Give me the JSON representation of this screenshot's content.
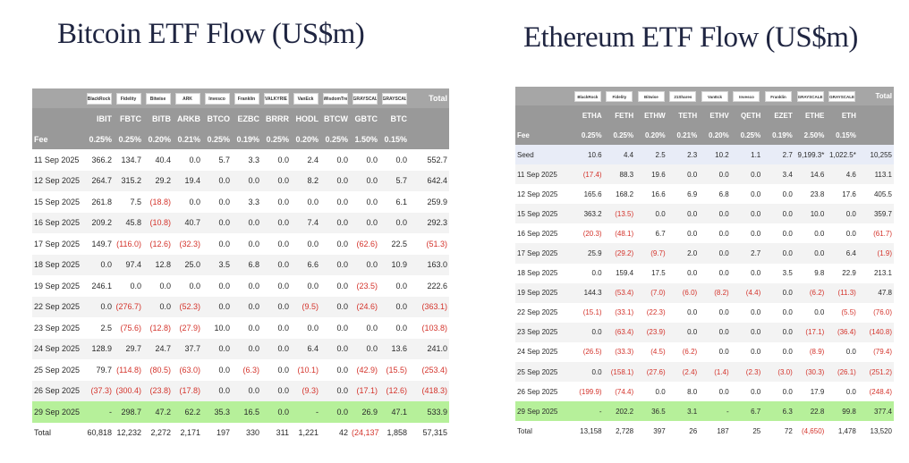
{
  "btc": {
    "title": "Bitcoin ETF Flow (US$m)",
    "logos": [
      "BlackRock",
      "Fidelity",
      "Bitwise",
      "ARK",
      "Invesco",
      "Franklin",
      "VALKYRIE",
      "VanEck",
      "WisdomTree",
      "GRAYSCALE",
      "GRAYSCALE"
    ],
    "total_header": "Total",
    "tickers": [
      "IBIT",
      "FBTC",
      "BITB",
      "ARKB",
      "BTCO",
      "EZBC",
      "BRRR",
      "HODL",
      "BTCW",
      "GBTC",
      "BTC"
    ],
    "fee_label": "Fee",
    "fees": [
      "0.25%",
      "0.25%",
      "0.20%",
      "0.21%",
      "0.25%",
      "0.19%",
      "0.25%",
      "0.20%",
      "0.25%",
      "1.50%",
      "0.15%"
    ],
    "rows": [
      {
        "date": "11 Sep 2025",
        "cells": [
          "366.2",
          "134.7",
          "40.4",
          "0.0",
          "5.7",
          "3.3",
          "0.0",
          "2.4",
          "0.0",
          "0.0",
          "0.0"
        ],
        "total": "552.7"
      },
      {
        "date": "12 Sep 2025",
        "cells": [
          "264.7",
          "315.2",
          "29.2",
          "19.4",
          "0.0",
          "0.0",
          "0.0",
          "8.2",
          "0.0",
          "0.0",
          "5.7"
        ],
        "total": "642.4"
      },
      {
        "date": "15 Sep 2025",
        "cells": [
          "261.8",
          "7.5",
          "(18.8)",
          "0.0",
          "0.0",
          "3.3",
          "0.0",
          "0.0",
          "0.0",
          "0.0",
          "6.1"
        ],
        "total": "259.9"
      },
      {
        "date": "16 Sep 2025",
        "cells": [
          "209.2",
          "45.8",
          "(10.8)",
          "40.7",
          "0.0",
          "0.0",
          "0.0",
          "7.4",
          "0.0",
          "0.0",
          "0.0"
        ],
        "total": "292.3"
      },
      {
        "date": "17 Sep 2025",
        "cells": [
          "149.7",
          "(116.0)",
          "(12.6)",
          "(32.3)",
          "0.0",
          "0.0",
          "0.0",
          "0.0",
          "0.0",
          "(62.6)",
          "22.5"
        ],
        "total": "(51.3)"
      },
      {
        "date": "18 Sep 2025",
        "cells": [
          "0.0",
          "97.4",
          "12.8",
          "25.0",
          "3.5",
          "6.8",
          "0.0",
          "6.6",
          "0.0",
          "0.0",
          "10.9"
        ],
        "total": "163.0"
      },
      {
        "date": "19 Sep 2025",
        "cells": [
          "246.1",
          "0.0",
          "0.0",
          "0.0",
          "0.0",
          "0.0",
          "0.0",
          "0.0",
          "0.0",
          "(23.5)",
          "0.0"
        ],
        "total": "222.6"
      },
      {
        "date": "22 Sep 2025",
        "cells": [
          "0.0",
          "(276.7)",
          "0.0",
          "(52.3)",
          "0.0",
          "0.0",
          "0.0",
          "(9.5)",
          "0.0",
          "(24.6)",
          "0.0"
        ],
        "total": "(363.1)"
      },
      {
        "date": "23 Sep 2025",
        "cells": [
          "2.5",
          "(75.6)",
          "(12.8)",
          "(27.9)",
          "10.0",
          "0.0",
          "0.0",
          "0.0",
          "0.0",
          "0.0",
          "0.0"
        ],
        "total": "(103.8)"
      },
      {
        "date": "24 Sep 2025",
        "cells": [
          "128.9",
          "29.7",
          "24.7",
          "37.7",
          "0.0",
          "0.0",
          "0.0",
          "6.4",
          "0.0",
          "0.0",
          "13.6"
        ],
        "total": "241.0"
      },
      {
        "date": "25 Sep 2025",
        "cells": [
          "79.7",
          "(114.8)",
          "(80.5)",
          "(63.0)",
          "0.0",
          "(6.3)",
          "0.0",
          "(10.1)",
          "0.0",
          "(42.9)",
          "(15.5)"
        ],
        "total": "(253.4)"
      },
      {
        "date": "26 Sep 2025",
        "cells": [
          "(37.3)",
          "(300.4)",
          "(23.8)",
          "(17.8)",
          "0.0",
          "0.0",
          "0.0",
          "(9.3)",
          "0.0",
          "(17.1)",
          "(12.6)"
        ],
        "total": "(418.3)"
      },
      {
        "date": "29 Sep 2025",
        "cells": [
          "-",
          "298.7",
          "47.2",
          "62.2",
          "35.3",
          "16.5",
          "0.0",
          "-",
          "0.0",
          "26.9",
          "47.1"
        ],
        "total": "533.9",
        "highlight": true
      }
    ],
    "total_row": {
      "label": "Total",
      "cells": [
        "60,818",
        "12,232",
        "2,272",
        "2,171",
        "197",
        "330",
        "311",
        "1,221",
        "42",
        "(24,137)",
        "1,858"
      ],
      "total": "57,315"
    }
  },
  "eth": {
    "title": "Ethereum ETF Flow (US$m)",
    "logos": [
      "BlackRock",
      "Fidelity",
      "Bitwise",
      "21Shares",
      "VanEck",
      "Invesco",
      "Franklin",
      "GRAYSCALE",
      "GRAYSCALE"
    ],
    "total_header": "Total",
    "tickers": [
      "ETHA",
      "FETH",
      "ETHW",
      "TETH",
      "ETHV",
      "QETH",
      "EZET",
      "ETHE",
      "ETH"
    ],
    "fee_label": "Fee",
    "fees": [
      "0.25%",
      "0.25%",
      "0.20%",
      "0.21%",
      "0.20%",
      "0.25%",
      "0.19%",
      "2.50%",
      "0.15%"
    ],
    "rows": [
      {
        "date": "Seed",
        "cells": [
          "10.6",
          "4.4",
          "2.5",
          "2.3",
          "10.2",
          "1.1",
          "2.7",
          "9,199.3*",
          "1,022.5*"
        ],
        "total": "10,255",
        "seed": true
      },
      {
        "date": "11 Sep 2025",
        "cells": [
          "(17.4)",
          "88.3",
          "19.6",
          "0.0",
          "0.0",
          "0.0",
          "3.4",
          "14.6",
          "4.6"
        ],
        "total": "113.1"
      },
      {
        "date": "12 Sep 2025",
        "cells": [
          "165.6",
          "168.2",
          "16.6",
          "6.9",
          "6.8",
          "0.0",
          "0.0",
          "23.8",
          "17.6"
        ],
        "total": "405.5"
      },
      {
        "date": "15 Sep 2025",
        "cells": [
          "363.2",
          "(13.5)",
          "0.0",
          "0.0",
          "0.0",
          "0.0",
          "0.0",
          "10.0",
          "0.0"
        ],
        "total": "359.7"
      },
      {
        "date": "16 Sep 2025",
        "cells": [
          "(20.3)",
          "(48.1)",
          "6.7",
          "0.0",
          "0.0",
          "0.0",
          "0.0",
          "0.0",
          "0.0"
        ],
        "total": "(61.7)"
      },
      {
        "date": "17 Sep 2025",
        "cells": [
          "25.9",
          "(29.2)",
          "(9.7)",
          "2.0",
          "0.0",
          "2.7",
          "0.0",
          "0.0",
          "6.4"
        ],
        "total": "(1.9)"
      },
      {
        "date": "18 Sep 2025",
        "cells": [
          "0.0",
          "159.4",
          "17.5",
          "0.0",
          "0.0",
          "0.0",
          "3.5",
          "9.8",
          "22.9"
        ],
        "total": "213.1"
      },
      {
        "date": "19 Sep 2025",
        "cells": [
          "144.3",
          "(53.4)",
          "(7.0)",
          "(6.0)",
          "(8.2)",
          "(4.4)",
          "0.0",
          "(6.2)",
          "(11.3)"
        ],
        "total": "47.8"
      },
      {
        "date": "22 Sep 2025",
        "cells": [
          "(15.1)",
          "(33.1)",
          "(22.3)",
          "0.0",
          "0.0",
          "0.0",
          "0.0",
          "0.0",
          "(5.5)"
        ],
        "total": "(76.0)"
      },
      {
        "date": "23 Sep 2025",
        "cells": [
          "0.0",
          "(63.4)",
          "(23.9)",
          "0.0",
          "0.0",
          "0.0",
          "0.0",
          "(17.1)",
          "(36.4)"
        ],
        "total": "(140.8)"
      },
      {
        "date": "24 Sep 2025",
        "cells": [
          "(26.5)",
          "(33.3)",
          "(4.5)",
          "(6.2)",
          "0.0",
          "0.0",
          "0.0",
          "(8.9)",
          "0.0"
        ],
        "total": "(79.4)"
      },
      {
        "date": "25 Sep 2025",
        "cells": [
          "0.0",
          "(158.1)",
          "(27.6)",
          "(2.4)",
          "(1.4)",
          "(2.3)",
          "(3.0)",
          "(30.3)",
          "(26.1)"
        ],
        "total": "(251.2)"
      },
      {
        "date": "26 Sep 2025",
        "cells": [
          "(199.9)",
          "(74.4)",
          "0.0",
          "8.0",
          "0.0",
          "0.0",
          "0.0",
          "17.9",
          "0.0"
        ],
        "total": "(248.4)"
      },
      {
        "date": "29 Sep 2025",
        "cells": [
          "-",
          "202.2",
          "36.5",
          "3.1",
          "-",
          "6.7",
          "6.3",
          "22.8",
          "99.8"
        ],
        "total": "377.4",
        "highlight": true
      }
    ],
    "total_row": {
      "label": "Total",
      "cells": [
        "13,158",
        "2,728",
        "397",
        "26",
        "187",
        "25",
        "72",
        "(4,650)",
        "1,478"
      ],
      "total": "13,520"
    }
  },
  "colors": {
    "negative": "#d4342c",
    "highlight": "#b6f09a",
    "header": "#999999",
    "title": "#1f2541",
    "seed": "#e8ecf7"
  },
  "chart_data": [
    {
      "type": "table",
      "title": "Bitcoin ETF Flow (US$m)",
      "columns": [
        "IBIT",
        "FBTC",
        "BITB",
        "ARKB",
        "BTCO",
        "EZBC",
        "BRRR",
        "HODL",
        "BTCW",
        "GBTC",
        "BTC",
        "Total"
      ],
      "fees": [
        "0.25%",
        "0.25%",
        "0.20%",
        "0.21%",
        "0.25%",
        "0.19%",
        "0.25%",
        "0.20%",
        "0.25%",
        "1.50%",
        "0.15%"
      ],
      "rows": [
        [
          "11 Sep 2025",
          366.2,
          134.7,
          40.4,
          0.0,
          5.7,
          3.3,
          0.0,
          2.4,
          0.0,
          0.0,
          0.0,
          552.7
        ],
        [
          "12 Sep 2025",
          264.7,
          315.2,
          29.2,
          19.4,
          0.0,
          0.0,
          0.0,
          8.2,
          0.0,
          0.0,
          5.7,
          642.4
        ],
        [
          "15 Sep 2025",
          261.8,
          7.5,
          -18.8,
          0.0,
          0.0,
          3.3,
          0.0,
          0.0,
          0.0,
          0.0,
          6.1,
          259.9
        ],
        [
          "16 Sep 2025",
          209.2,
          45.8,
          -10.8,
          40.7,
          0.0,
          0.0,
          0.0,
          7.4,
          0.0,
          0.0,
          0.0,
          292.3
        ],
        [
          "17 Sep 2025",
          149.7,
          -116.0,
          -12.6,
          -32.3,
          0.0,
          0.0,
          0.0,
          0.0,
          0.0,
          -62.6,
          22.5,
          -51.3
        ],
        [
          "18 Sep 2025",
          0.0,
          97.4,
          12.8,
          25.0,
          3.5,
          6.8,
          0.0,
          6.6,
          0.0,
          0.0,
          10.9,
          163.0
        ],
        [
          "19 Sep 2025",
          246.1,
          0.0,
          0.0,
          0.0,
          0.0,
          0.0,
          0.0,
          0.0,
          0.0,
          -23.5,
          0.0,
          222.6
        ],
        [
          "22 Sep 2025",
          0.0,
          -276.7,
          0.0,
          -52.3,
          0.0,
          0.0,
          0.0,
          -9.5,
          0.0,
          -24.6,
          0.0,
          -363.1
        ],
        [
          "23 Sep 2025",
          2.5,
          -75.6,
          -12.8,
          -27.9,
          10.0,
          0.0,
          0.0,
          0.0,
          0.0,
          0.0,
          0.0,
          -103.8
        ],
        [
          "24 Sep 2025",
          128.9,
          29.7,
          24.7,
          37.7,
          0.0,
          0.0,
          0.0,
          6.4,
          0.0,
          0.0,
          13.6,
          241.0
        ],
        [
          "25 Sep 2025",
          79.7,
          -114.8,
          -80.5,
          -63.0,
          0.0,
          -6.3,
          0.0,
          -10.1,
          0.0,
          -42.9,
          -15.5,
          -253.4
        ],
        [
          "26 Sep 2025",
          -37.3,
          -300.4,
          -23.8,
          -17.8,
          0.0,
          0.0,
          0.0,
          -9.3,
          0.0,
          -17.1,
          -12.6,
          -418.3
        ],
        [
          "29 Sep 2025",
          null,
          298.7,
          47.2,
          62.2,
          35.3,
          16.5,
          0.0,
          null,
          0.0,
          26.9,
          47.1,
          533.9
        ],
        [
          "Total",
          60818,
          12232,
          2272,
          2171,
          197,
          330,
          311,
          1221,
          42,
          -24137,
          1858,
          57315
        ]
      ]
    },
    {
      "type": "table",
      "title": "Ethereum ETF Flow (US$m)",
      "columns": [
        "ETHA",
        "FETH",
        "ETHW",
        "TETH",
        "ETHV",
        "QETH",
        "EZET",
        "ETHE",
        "ETH",
        "Total"
      ],
      "fees": [
        "0.25%",
        "0.25%",
        "0.20%",
        "0.21%",
        "0.20%",
        "0.25%",
        "0.19%",
        "2.50%",
        "0.15%"
      ],
      "rows": [
        [
          "Seed",
          10.6,
          4.4,
          2.5,
          2.3,
          10.2,
          1.1,
          2.7,
          9199.3,
          1022.5,
          10255
        ],
        [
          "11 Sep 2025",
          -17.4,
          88.3,
          19.6,
          0.0,
          0.0,
          0.0,
          3.4,
          14.6,
          4.6,
          113.1
        ],
        [
          "12 Sep 2025",
          165.6,
          168.2,
          16.6,
          6.9,
          6.8,
          0.0,
          0.0,
          23.8,
          17.6,
          405.5
        ],
        [
          "15 Sep 2025",
          363.2,
          -13.5,
          0.0,
          0.0,
          0.0,
          0.0,
          0.0,
          10.0,
          0.0,
          359.7
        ],
        [
          "16 Sep 2025",
          -20.3,
          -48.1,
          6.7,
          0.0,
          0.0,
          0.0,
          0.0,
          0.0,
          0.0,
          -61.7
        ],
        [
          "17 Sep 2025",
          25.9,
          -29.2,
          -9.7,
          2.0,
          0.0,
          2.7,
          0.0,
          0.0,
          6.4,
          -1.9
        ],
        [
          "18 Sep 2025",
          0.0,
          159.4,
          17.5,
          0.0,
          0.0,
          0.0,
          3.5,
          9.8,
          22.9,
          213.1
        ],
        [
          "19 Sep 2025",
          144.3,
          -53.4,
          -7.0,
          -6.0,
          -8.2,
          -4.4,
          0.0,
          -6.2,
          -11.3,
          47.8
        ],
        [
          "22 Sep 2025",
          -15.1,
          -33.1,
          -22.3,
          0.0,
          0.0,
          0.0,
          0.0,
          0.0,
          -5.5,
          -76.0
        ],
        [
          "23 Sep 2025",
          0.0,
          -63.4,
          -23.9,
          0.0,
          0.0,
          0.0,
          0.0,
          -17.1,
          -36.4,
          -140.8
        ],
        [
          "24 Sep 2025",
          -26.5,
          -33.3,
          -4.5,
          -6.2,
          0.0,
          0.0,
          0.0,
          -8.9,
          0.0,
          -79.4
        ],
        [
          "25 Sep 2025",
          0.0,
          -158.1,
          -27.6,
          -2.4,
          -1.4,
          -2.3,
          -3.0,
          -30.3,
          -26.1,
          -251.2
        ],
        [
          "26 Sep 2025",
          -199.9,
          -74.4,
          0.0,
          8.0,
          0.0,
          0.0,
          0.0,
          17.9,
          0.0,
          -248.4
        ],
        [
          "29 Sep 2025",
          null,
          202.2,
          36.5,
          3.1,
          null,
          6.7,
          6.3,
          22.8,
          99.8,
          377.4
        ],
        [
          "Total",
          13158,
          2728,
          397,
          26,
          187,
          25,
          72,
          -4650,
          1478,
          13520
        ]
      ]
    }
  ]
}
